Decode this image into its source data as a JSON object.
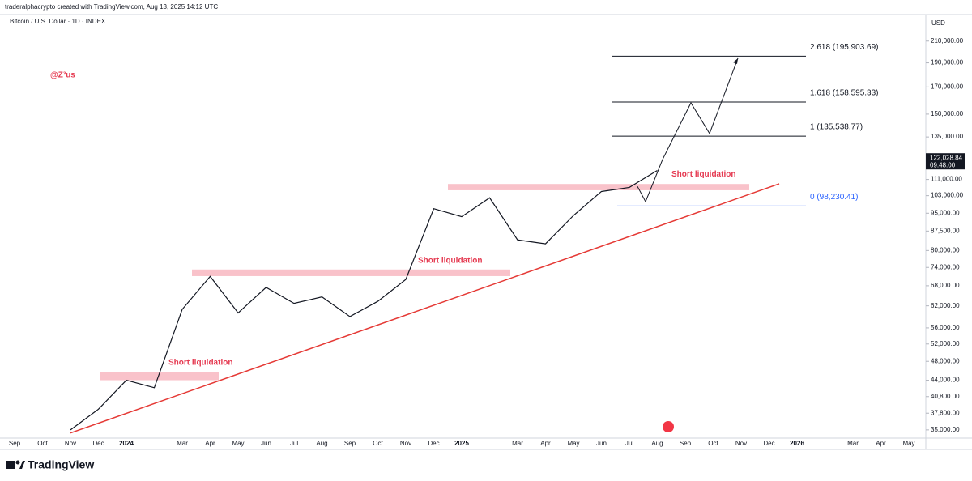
{
  "chart_data": {
    "type": "line",
    "header": "traderalphacrypto created with TradingView.com, Aug 13, 2025 14:12 UTC",
    "title": "Bitcoin / U.S. Dollar · 1D · INDEX",
    "watermark": "@Z³us",
    "currency": "USD",
    "brand": "TradingView",
    "log_scale": true,
    "categories": [
      "Sep",
      "Oct",
      "Nov",
      "Dec",
      "2024",
      null,
      "Mar",
      "Apr",
      "May",
      "Jun",
      "Jul",
      "Aug",
      "Sep",
      "Oct",
      "Nov",
      "Dec",
      "2025",
      null,
      "Mar",
      "Apr",
      "May",
      "Jun",
      "Jul",
      "Aug",
      "Sep",
      "Oct",
      "Nov",
      "Dec",
      "2026",
      null,
      "Mar",
      "Apr",
      "May"
    ],
    "series": [
      {
        "color": "#131722",
        "values": [
          null,
          null,
          35000,
          38500,
          44000,
          42500,
          61000,
          71000,
          60000,
          67500,
          62700,
          64600,
          59000,
          63300,
          70000,
          97000,
          93500,
          102000,
          84000,
          82500,
          94000,
          105000,
          107000,
          115700,
          null,
          null,
          null,
          null,
          null,
          null,
          null,
          null,
          null
        ]
      }
    ],
    "ylim": [
      33700,
      237300
    ],
    "yticks": [
      {
        "value": 35000,
        "label": "35,000.00"
      },
      {
        "value": 37800,
        "label": "37,800.00"
      },
      {
        "value": 40800,
        "label": "40,800.00"
      },
      {
        "value": 44000,
        "label": "44,000.00"
      },
      {
        "value": 48000,
        "label": "48,000.00"
      },
      {
        "value": 52000,
        "label": "52,000.00"
      },
      {
        "value": 56000,
        "label": "56,000.00"
      },
      {
        "value": 62000,
        "label": "62,000.00"
      },
      {
        "value": 68000,
        "label": "68,000.00"
      },
      {
        "value": 74000,
        "label": "74,000.00"
      },
      {
        "value": 80000,
        "label": "80,000.00"
      },
      {
        "value": 87500,
        "label": "87,500.00"
      },
      {
        "value": 95000,
        "label": "95,000.00"
      },
      {
        "value": 103000,
        "label": "103,000.00"
      },
      {
        "value": 111000,
        "label": "111,000.00"
      },
      {
        "value": 135000,
        "label": "135,000.00"
      },
      {
        "value": 150000,
        "label": "150,000.00"
      },
      {
        "value": 170000,
        "label": "170,000.00"
      },
      {
        "value": 190000,
        "label": "190,000.00"
      },
      {
        "value": 210000,
        "label": "210,000.00"
      }
    ],
    "last_price": {
      "value": 122028.84,
      "label": "122,028.84",
      "time": "09:48:00"
    },
    "fib_levels": [
      {
        "value": 195903.69,
        "label": "2.618 (195,903.69)",
        "color": "#131722"
      },
      {
        "value": 158595.33,
        "label": "1.618 (158,595.33)",
        "color": "#131722"
      },
      {
        "value": 135538.77,
        "label": "1 (135,538.77)",
        "color": "#131722"
      },
      {
        "value": 98230.41,
        "label": "0 (98,230.41)",
        "color": "#2962ff"
      }
    ],
    "zones": [
      {
        "label": "Short liquidation",
        "low": 44000,
        "high": 45600
      },
      {
        "label": "Short liquidation",
        "low": 71100,
        "high": 73300
      },
      {
        "label": "Short liquidation",
        "low": 105600,
        "high": 108700
      }
    ],
    "trendline": {
      "color": "#e53935",
      "values": [
        34500,
        108800
      ]
    },
    "projection": {
      "color": "#131722",
      "values": [
        107500,
        100200,
        121700,
        158000,
        137200,
        194000
      ]
    }
  }
}
